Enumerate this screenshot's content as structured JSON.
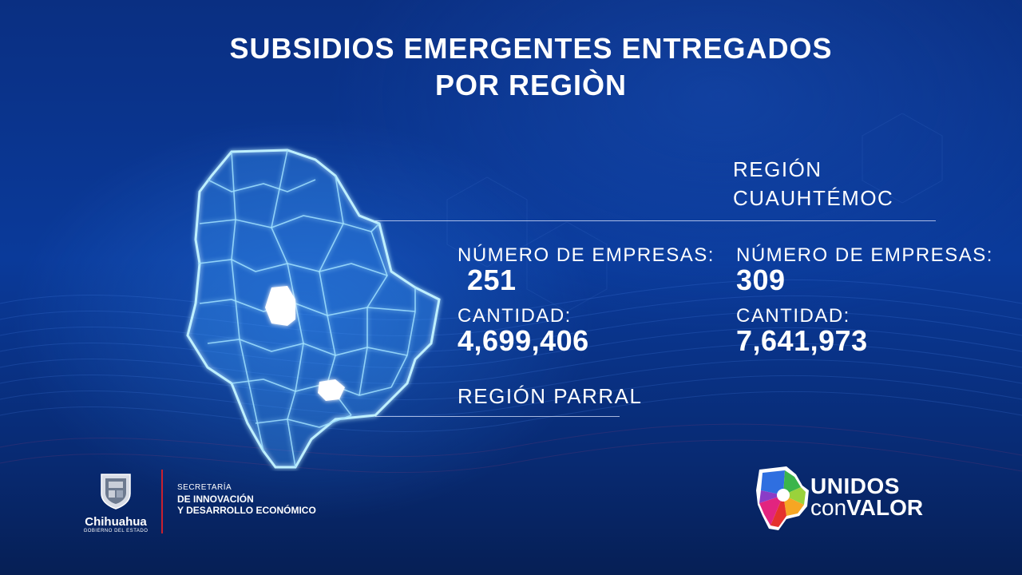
{
  "title": {
    "line1": "SUBSIDIOS EMERGENTES ENTREGADOS",
    "line2": "POR REGIÒN"
  },
  "regions": {
    "cuauhtemoc": {
      "label_line1": "REGIÓN",
      "label_line2": "CUAUHTÉMOC",
      "companies_label": "NÚMERO DE EMPRESAS:",
      "companies_value": "309",
      "amount_label": "CANTIDAD:",
      "amount_value": "7,641,973"
    },
    "parral": {
      "label": "REGIÓN PARRAL",
      "companies_label": "NÚMERO DE EMPRESAS:",
      "companies_value": "251",
      "amount_label": "CANTIDAD:",
      "amount_value": "4,699,406"
    }
  },
  "footer": {
    "gov_name": "Chihuahua",
    "gov_sub": "GOBIERNO DEL ESTADO",
    "secretaria_line1": "SECRETARÍA",
    "secretaria_line2": "DE INNOVACIÓN",
    "secretaria_line3": "Y DESARROLLO ECONÓMICO",
    "brand_line1": "UNIDOS",
    "brand_line2_a": "con",
    "brand_line2_b": "VALOR"
  },
  "icons": [
    "chihuahua-map-icon",
    "government-shield-icon",
    "unidos-con-valor-logo-icon"
  ],
  "colors": {
    "background": "#0a3a9a",
    "text": "#ffffff",
    "map_glow": "#7fd8ff",
    "divider_red": "#c8202f"
  }
}
